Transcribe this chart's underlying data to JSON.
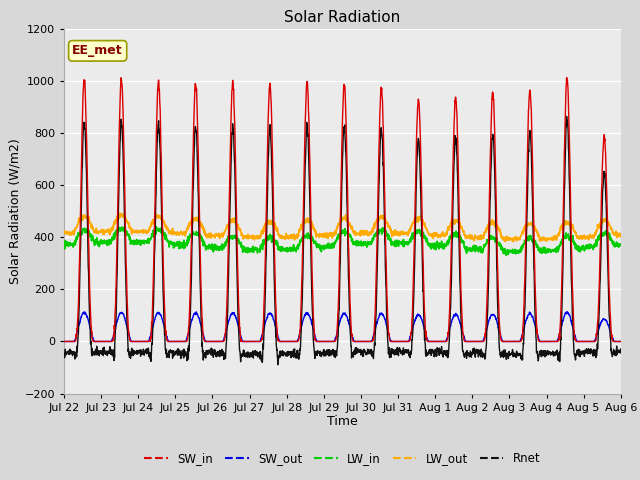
{
  "title": "Solar Radiation",
  "xlabel": "Time",
  "ylabel": "Solar Radiation (W/m2)",
  "ylim": [
    -200,
    1200
  ],
  "yticks": [
    -200,
    0,
    200,
    400,
    600,
    800,
    1000,
    1200
  ],
  "x_tick_labels": [
    "Jul 22",
    "Jul 23",
    "Jul 24",
    "Jul 25",
    "Jul 26",
    "Jul 27",
    "Jul 28",
    "Jul 29",
    "Jul 30",
    "Jul 31",
    "Aug 1",
    "Aug 2",
    "Aug 3",
    "Aug 4",
    "Aug 5",
    "Aug 6"
  ],
  "n_days": 15,
  "pts_per_day": 144,
  "colors": {
    "SW_in": "#dd0000",
    "SW_out": "#0000ee",
    "LW_in": "#00cc00",
    "LW_out": "#ffaa00",
    "Rnet": "#111111"
  },
  "bg_color": "#d8d8d8",
  "plot_bg": "#ebebeb",
  "annotation_text": "EE_met",
  "annotation_bg": "#ffffcc",
  "annotation_border": "#999900",
  "sw_peaks": [
    1005,
    1005,
    1000,
    995,
    990,
    985,
    990,
    990,
    970,
    930,
    940,
    960,
    965,
    1010,
    785
  ],
  "lw_in_base": 370,
  "lw_out_base": 415,
  "title_fontsize": 11,
  "axis_fontsize": 9,
  "tick_fontsize": 8
}
